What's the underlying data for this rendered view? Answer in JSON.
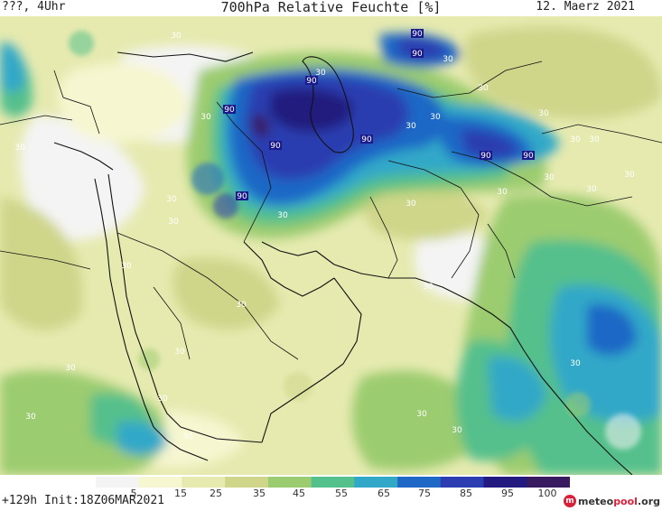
{
  "header": {
    "left": "???, 4Uhr",
    "title": "700hPa Relative Feuchte [%]",
    "date": "12. Maerz 2021"
  },
  "footer": {
    "run": "+129h  Init:18Z06MAR2021",
    "logo_main": "meteo",
    "logo_accent": "pool",
    "logo_tld": ".org"
  },
  "colorbar": {
    "ticks": [
      "5",
      "15",
      "25",
      "35",
      "45",
      "55",
      "65",
      "75",
      "85",
      "95",
      "100"
    ],
    "colors": [
      "#f4f4f4",
      "#f6f6d0",
      "#e6eaaf",
      "#cfd68a",
      "#9ccc70",
      "#54c08c",
      "#32a8c8",
      "#1f68c6",
      "#2b3db0",
      "#221a7e",
      "#381a60"
    ]
  },
  "contour_labels": [
    "30",
    "30",
    "30",
    "30",
    "90",
    "90",
    "90",
    "90",
    "90",
    "90",
    "90",
    "90",
    "90",
    "30",
    "30",
    "30",
    "30",
    "30",
    "30",
    "30",
    "30",
    "30",
    "30",
    "30",
    "30",
    "30",
    "30",
    "30",
    "30",
    "30",
    "30",
    "30",
    "30",
    "30",
    "30",
    "30",
    "30",
    "30",
    "30"
  ]
}
